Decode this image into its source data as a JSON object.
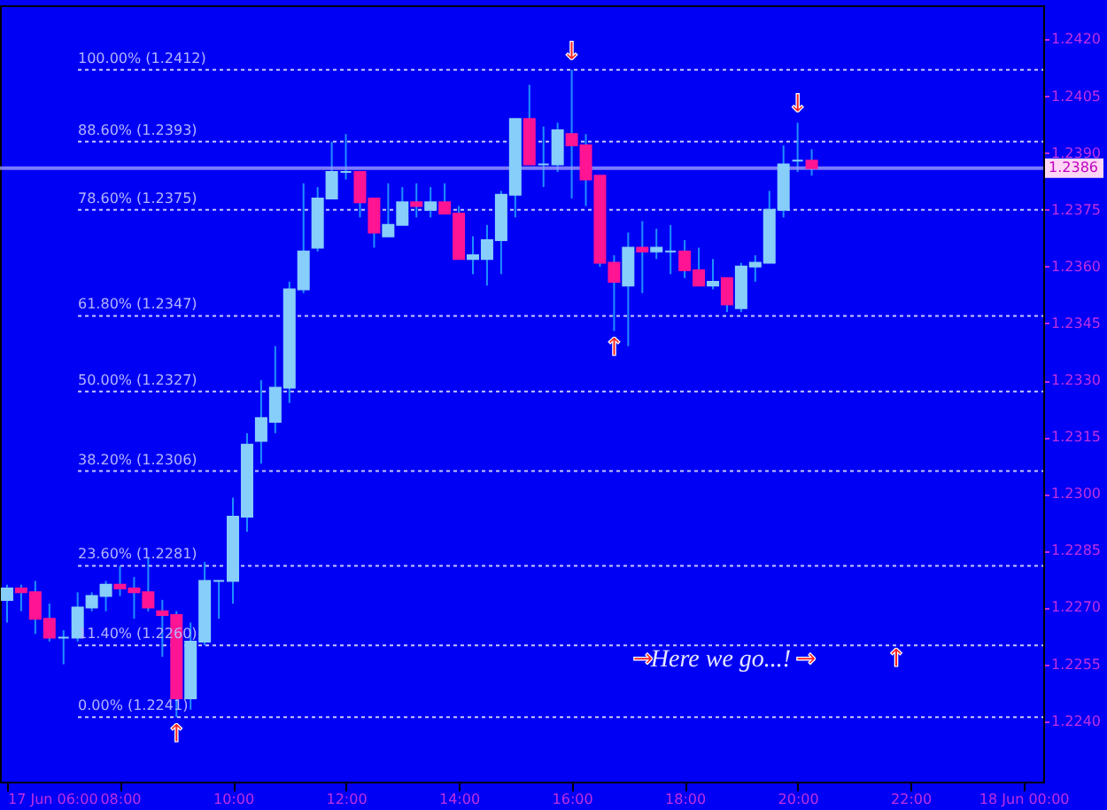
{
  "chart_data": {
    "type": "candlestick",
    "x": [
      6,
      6.25,
      6.5,
      6.75,
      7,
      7.25,
      7.5,
      7.75,
      8,
      8.25,
      8.5,
      8.75,
      9,
      9.25,
      9.5,
      9.75,
      10,
      10.25,
      10.5,
      10.75,
      11,
      11.25,
      11.5,
      11.75,
      12,
      12.25,
      12.5,
      12.75,
      13,
      13.25,
      13.5,
      13.75,
      14,
      14.25,
      14.5,
      14.75,
      15,
      15.25,
      15.5,
      15.75,
      16,
      16.25,
      16.5,
      16.75,
      17,
      17.25,
      17.5,
      17.75,
      18,
      18.25,
      18.5,
      18.75,
      19,
      19.25,
      19.5,
      19.75,
      20,
      20.25
    ],
    "ohlc": [
      [
        1.2272,
        1.2276,
        1.2266,
        1.2275
      ],
      [
        1.2275,
        1.2276,
        1.2269,
        1.2274
      ],
      [
        1.2274,
        1.2277,
        1.2263,
        1.2267
      ],
      [
        1.2267,
        1.2271,
        1.2261,
        1.2262
      ],
      [
        1.2262,
        1.2264,
        1.2255,
        1.2262
      ],
      [
        1.2262,
        1.2274,
        1.2261,
        1.227
      ],
      [
        1.227,
        1.2274,
        1.2269,
        1.2273
      ],
      [
        1.2273,
        1.2277,
        1.2269,
        1.2276
      ],
      [
        1.2276,
        1.2281,
        1.2273,
        1.2275
      ],
      [
        1.2275,
        1.2278,
        1.2267,
        1.2274
      ],
      [
        1.2274,
        1.2283,
        1.2269,
        1.227
      ],
      [
        1.2269,
        1.2272,
        1.2257,
        1.2268
      ],
      [
        1.2268,
        1.2269,
        1.2241,
        1.2246
      ],
      [
        1.2246,
        1.2266,
        1.2243,
        1.2261
      ],
      [
        1.2261,
        1.2282,
        1.226,
        1.2277
      ],
      [
        1.2277,
        1.2277,
        1.2267,
        1.2277
      ],
      [
        1.2277,
        1.2299,
        1.2271,
        1.2294
      ],
      [
        1.2294,
        1.2316,
        1.229,
        1.2313
      ],
      [
        1.2314,
        1.233,
        1.2308,
        1.232
      ],
      [
        1.2319,
        1.2339,
        1.2316,
        1.2328
      ],
      [
        1.2328,
        1.2356,
        1.2324,
        1.2354
      ],
      [
        1.2354,
        1.2382,
        1.2353,
        1.2364
      ],
      [
        1.2365,
        1.2381,
        1.2364,
        1.2378
      ],
      [
        1.2378,
        1.2393,
        1.2378,
        1.2385
      ],
      [
        1.2385,
        1.2395,
        1.2383,
        1.2385
      ],
      [
        1.2385,
        1.2385,
        1.2373,
        1.2377
      ],
      [
        1.2378,
        1.2378,
        1.2365,
        1.2369
      ],
      [
        1.2368,
        1.2382,
        1.2368,
        1.2371
      ],
      [
        1.2371,
        1.2381,
        1.2371,
        1.2377
      ],
      [
        1.2377,
        1.2382,
        1.2373,
        1.2376
      ],
      [
        1.2375,
        1.2381,
        1.2373,
        1.2377
      ],
      [
        1.2377,
        1.2382,
        1.2374,
        1.2374
      ],
      [
        1.2374,
        1.2376,
        1.2362,
        1.2362
      ],
      [
        1.2362,
        1.2368,
        1.2358,
        1.2363
      ],
      [
        1.2362,
        1.2371,
        1.2355,
        1.2367
      ],
      [
        1.2367,
        1.238,
        1.2358,
        1.2379
      ],
      [
        1.2379,
        1.2399,
        1.2373,
        1.2399
      ],
      [
        1.2399,
        1.2408,
        1.2387,
        1.2387
      ],
      [
        1.2387,
        1.2397,
        1.2381,
        1.2387
      ],
      [
        1.2387,
        1.2398,
        1.2385,
        1.2396
      ],
      [
        1.2395,
        1.2412,
        1.2378,
        1.2392
      ],
      [
        1.2392,
        1.2395,
        1.2376,
        1.2383
      ],
      [
        1.2384,
        1.2384,
        1.236,
        1.2361
      ],
      [
        1.2361,
        1.2363,
        1.2343,
        1.2356
      ],
      [
        1.2355,
        1.2369,
        1.2339,
        1.2365
      ],
      [
        1.2365,
        1.2372,
        1.2353,
        1.2364
      ],
      [
        1.2364,
        1.237,
        1.2362,
        1.2365
      ],
      [
        1.2364,
        1.2371,
        1.2358,
        1.2364
      ],
      [
        1.2364,
        1.2367,
        1.2357,
        1.2359
      ],
      [
        1.2359,
        1.2365,
        1.2355,
        1.2355
      ],
      [
        1.2355,
        1.2362,
        1.2354,
        1.2356
      ],
      [
        1.2357,
        1.2357,
        1.2348,
        1.235
      ],
      [
        1.2349,
        1.2361,
        1.2348,
        1.236
      ],
      [
        1.236,
        1.2363,
        1.2356,
        1.2361
      ],
      [
        1.2361,
        1.238,
        1.2361,
        1.2375
      ],
      [
        1.2375,
        1.2392,
        1.2373,
        1.2387
      ],
      [
        1.2388,
        1.2398,
        1.2385,
        1.2388
      ],
      [
        1.2388,
        1.2391,
        1.2384,
        1.2386
      ]
    ],
    "colors": [
      "#87cefa",
      "#ff1493",
      "#ff1493",
      "#ff1493",
      "#87cefa",
      "#87cefa",
      "#87cefa",
      "#87cefa",
      "#ff1493",
      "#ff1493",
      "#ff1493",
      "#ff1493",
      "#ff1493",
      "#87cefa",
      "#87cefa",
      "#87cefa",
      "#87cefa",
      "#87cefa",
      "#87cefa",
      "#87cefa",
      "#87cefa",
      "#87cefa",
      "#87cefa",
      "#87cefa",
      "#87cefa",
      "#ff1493",
      "#ff1493",
      "#87cefa",
      "#87cefa",
      "#ff1493",
      "#87cefa",
      "#ff1493",
      "#ff1493",
      "#87cefa",
      "#87cefa",
      "#87cefa",
      "#87cefa",
      "#ff1493",
      "#87cefa",
      "#87cefa",
      "#ff1493",
      "#ff1493",
      "#ff1493",
      "#ff1493",
      "#87cefa",
      "#ff1493",
      "#87cefa",
      "#87cefa",
      "#ff1493",
      "#ff1493",
      "#87cefa",
      "#ff1493",
      "#87cefa",
      "#87cefa",
      "#87cefa",
      "#87cefa",
      "#87cefa",
      "#ff1493"
    ],
    "xlim": [
      5.875,
      24.35
    ],
    "xticks": [
      {
        "value": 6,
        "label": "17 Jun 06:00"
      },
      {
        "value": 8,
        "label": "08:00"
      },
      {
        "value": 10,
        "label": "10:00"
      },
      {
        "value": 12,
        "label": "12:00"
      },
      {
        "value": 14,
        "label": "14:00"
      },
      {
        "value": 16,
        "label": "16:00"
      },
      {
        "value": 18,
        "label": "18:00"
      },
      {
        "value": 20,
        "label": "20:00"
      },
      {
        "value": 22,
        "label": "22:00"
      },
      {
        "value": 24,
        "label": "18 Jun 00:00"
      }
    ],
    "ylim": [
      1.2224,
      1.2429
    ],
    "yticks": [
      {
        "value": 1.224,
        "label": "1.2240"
      },
      {
        "value": 1.2255,
        "label": "1.2255"
      },
      {
        "value": 1.227,
        "label": "1.2270"
      },
      {
        "value": 1.2285,
        "label": "1.2285"
      },
      {
        "value": 1.23,
        "label": "1.2300"
      },
      {
        "value": 1.2315,
        "label": "1.2315"
      },
      {
        "value": 1.233,
        "label": "1.2330"
      },
      {
        "value": 1.2345,
        "label": "1.2345"
      },
      {
        "value": 1.236,
        "label": "1.2360"
      },
      {
        "value": 1.2375,
        "label": "1.2375"
      },
      {
        "value": 1.239,
        "label": "1.2390"
      },
      {
        "value": 1.2405,
        "label": "1.2405"
      },
      {
        "value": 1.242,
        "label": "1.2420"
      }
    ],
    "ref_lines": [
      {
        "axis": "y",
        "value": 1.2412,
        "label": "100.00% (1.2412)",
        "color": "#c8c8ff",
        "line_style": "dotted"
      },
      {
        "axis": "y",
        "value": 1.2393,
        "label": "88.60% (1.2393)",
        "color": "#c8c8ff",
        "line_style": "dotted"
      },
      {
        "axis": "y",
        "value": 1.2375,
        "label": "78.60% (1.2375)",
        "color": "#c8c8ff",
        "line_style": "dotted"
      },
      {
        "axis": "y",
        "value": 1.2347,
        "label": "61.80% (1.2347)",
        "color": "#c8c8ff",
        "line_style": "dotted"
      },
      {
        "axis": "y",
        "value": 1.2327,
        "label": "50.00% (1.2327)",
        "color": "#c8c8ff",
        "line_style": "dotted"
      },
      {
        "axis": "y",
        "value": 1.2306,
        "label": "38.20% (1.2306)",
        "color": "#c8c8ff",
        "line_style": "dotted"
      },
      {
        "axis": "y",
        "value": 1.2281,
        "label": "23.60% (1.2281)",
        "color": "#c8c8ff",
        "line_style": "dotted"
      },
      {
        "axis": "y",
        "value": 1.226,
        "label": "11.40% (1.2260)",
        "color": "#c8c8ff",
        "line_style": "dotted"
      },
      {
        "axis": "y",
        "value": 1.2241,
        "label": "0.00% (1.2241)",
        "color": "#c8c8ff",
        "line_style": "dotted"
      },
      {
        "axis": "y",
        "value": 1.2386,
        "label": "1.2386",
        "color": "#9a9aff",
        "line_style": "solid"
      }
    ],
    "annotations": [
      {
        "text": "↓",
        "x": 16,
        "y": 1.2412
      },
      {
        "text": "↓",
        "x": 20,
        "y": 1.2398
      },
      {
        "text": "↑",
        "x": 9,
        "y": 1.2241
      },
      {
        "text": "↑",
        "x": 16.75,
        "y": 1.2343
      },
      "→",
      "Here we go...!",
      "→",
      "↑"
    ]
  }
}
